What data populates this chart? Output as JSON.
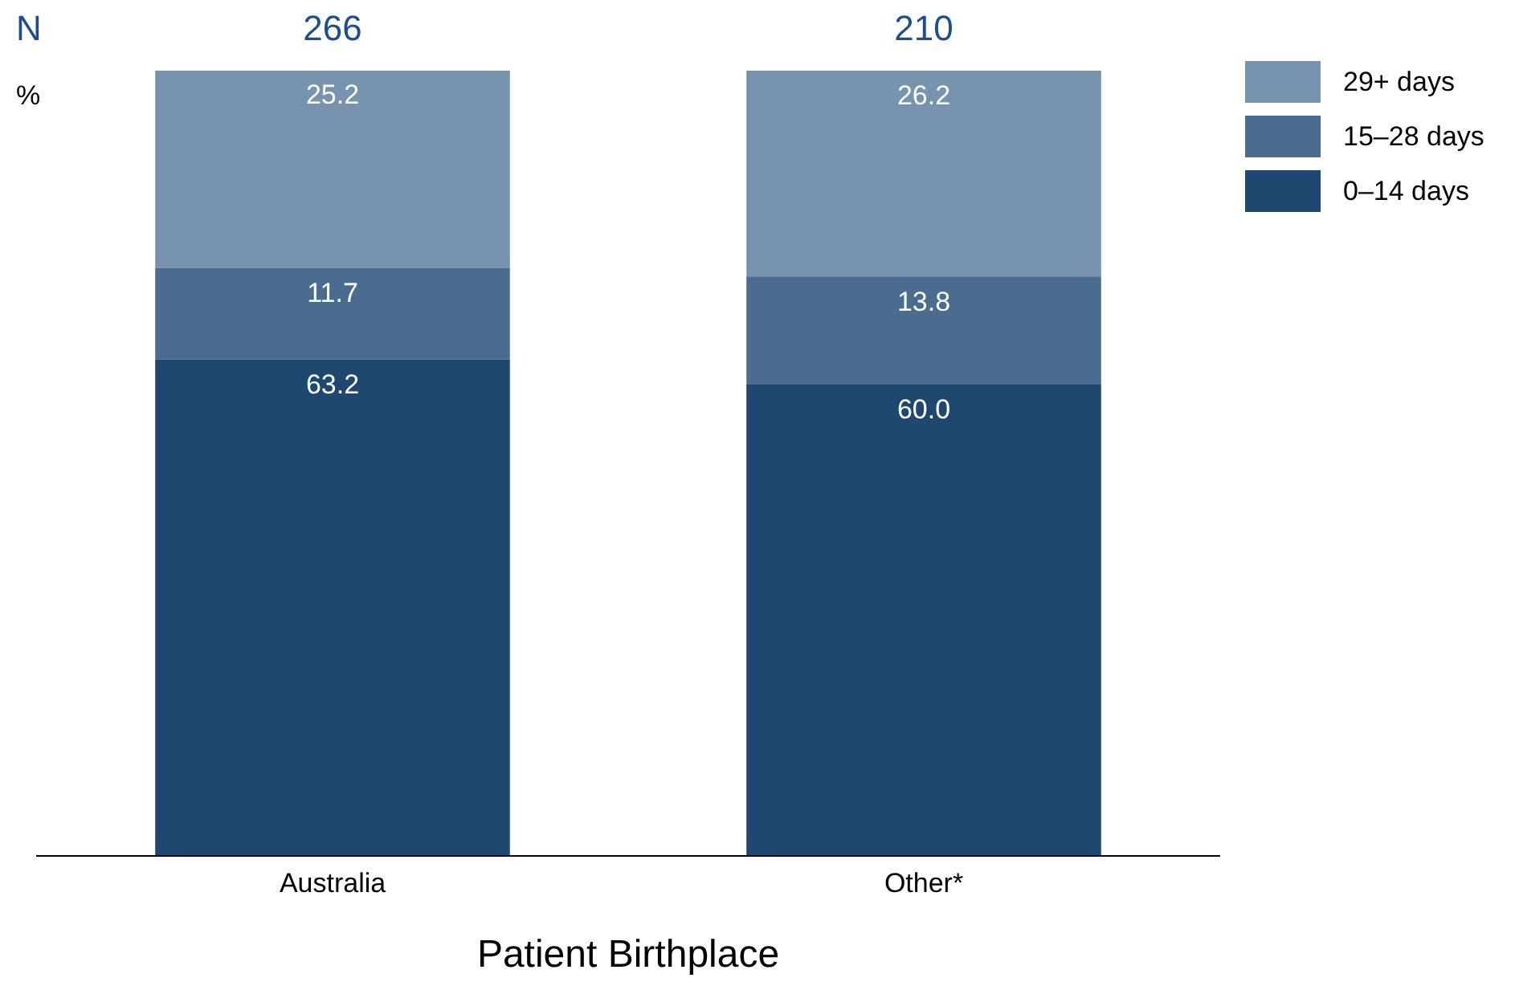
{
  "chart_data": {
    "type": "bar",
    "stacked": true,
    "xlabel": "Patient Birthplace",
    "ylabel": "%",
    "categories": [
      "Australia",
      "Other*"
    ],
    "series": [
      {
        "name": "0–14 days",
        "color": "#1f4870",
        "values": [
          63.2,
          60.0
        ],
        "value_labels": [
          "63.2",
          "60.0"
        ]
      },
      {
        "name": "15–28 days",
        "color": "#4a6d8f",
        "values": [
          11.7,
          13.8
        ],
        "value_labels": [
          "11.7",
          "13.8"
        ]
      },
      {
        "name": "29+ days",
        "color": "#7793ae",
        "values": [
          25.2,
          26.2
        ],
        "value_labels": [
          "25.2",
          "26.2"
        ]
      }
    ],
    "ylim": [
      0,
      100
    ],
    "tick_labels": "x",
    "grid": false,
    "legend": "top right",
    "annotations": [
      "N",
      {
        "text": "266",
        "x": "Australia",
        "y": 100
      },
      {
        "text": "210",
        "x": "Other*",
        "y": 100
      }
    ]
  }
}
